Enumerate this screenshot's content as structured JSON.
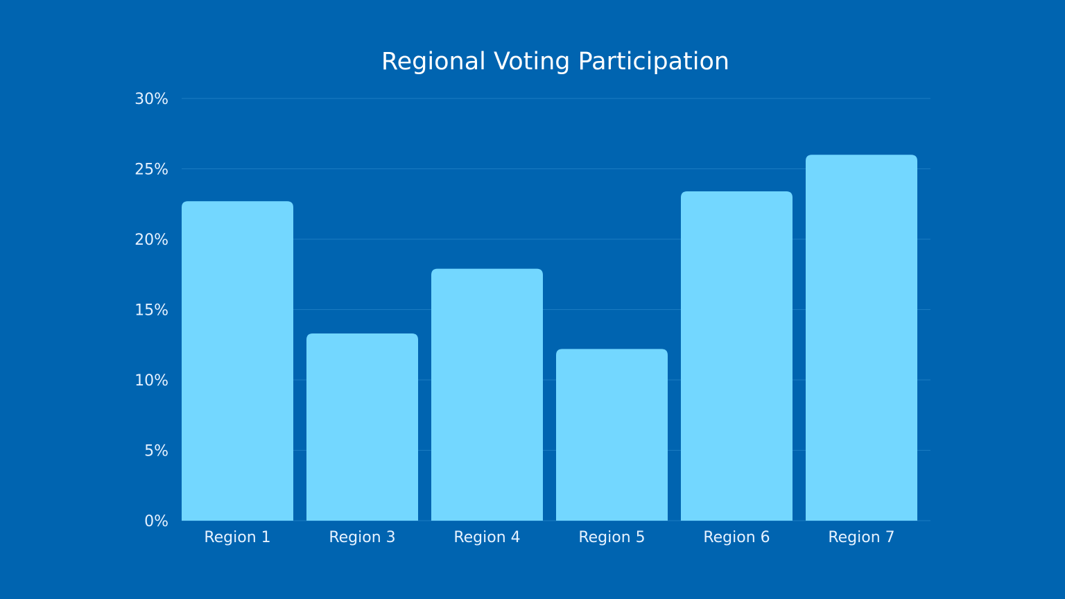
{
  "colors": {
    "background": "#0064b0",
    "bar": "#73d7ff",
    "grid": "#1b7cc2",
    "text": "#e6f2ff",
    "title": "#ffffff"
  },
  "chart_data": {
    "type": "bar",
    "title": "Regional Voting Participation",
    "xlabel": "",
    "ylabel": "",
    "categories": [
      "Region 1",
      "Region 3",
      "Region 4",
      "Region 5",
      "Region 6",
      "Region 7"
    ],
    "values": [
      22.7,
      13.3,
      17.9,
      12.2,
      23.4,
      26.0
    ],
    "ylim": [
      0,
      30
    ],
    "yticks": [
      0,
      5,
      10,
      15,
      20,
      25,
      30
    ],
    "ytick_labels": [
      "0%",
      "5%",
      "10%",
      "15%",
      "20%",
      "25%",
      "30%"
    ],
    "grid": true,
    "legend": "none"
  }
}
